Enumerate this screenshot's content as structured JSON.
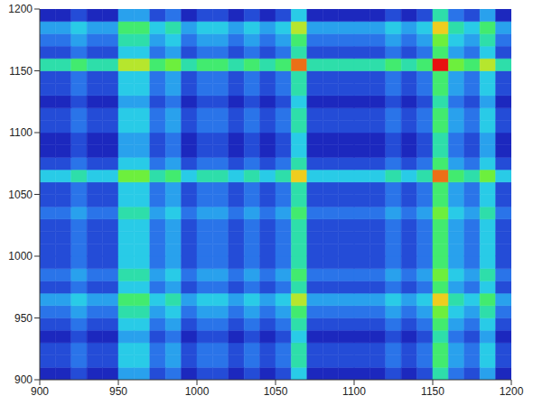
{
  "chart_data": {
    "type": "heatmap",
    "xlim": [
      900,
      1200
    ],
    "ylim": [
      900,
      1200
    ],
    "xticks": [
      900,
      950,
      1000,
      1050,
      1100,
      1150,
      1200
    ],
    "yticks": [
      900,
      950,
      1000,
      1050,
      1100,
      1150,
      1200
    ],
    "xbins": [
      900,
      910,
      920,
      930,
      940,
      950,
      960,
      970,
      980,
      990,
      1000,
      1010,
      1020,
      1030,
      1040,
      1050,
      1060,
      1070,
      1080,
      1090,
      1100,
      1110,
      1120,
      1130,
      1140,
      1150,
      1160,
      1170,
      1180,
      1190,
      1200
    ],
    "ybins": [
      900,
      910,
      920,
      930,
      940,
      950,
      960,
      970,
      980,
      990,
      1000,
      1010,
      1020,
      1030,
      1040,
      1050,
      1060,
      1070,
      1080,
      1090,
      1100,
      1110,
      1120,
      1130,
      1140,
      1150,
      1160,
      1170,
      1180,
      1190,
      1200
    ],
    "cells": [
      [
        1,
        1,
        2,
        1,
        1,
        4,
        4,
        2,
        3,
        1,
        2,
        2,
        1,
        2,
        1,
        2,
        5,
        1,
        1,
        1,
        1,
        1,
        2,
        1,
        2,
        6,
        3,
        2,
        4,
        1
      ],
      [
        2,
        2,
        3,
        2,
        2,
        5,
        5,
        3,
        4,
        2,
        3,
        3,
        2,
        3,
        2,
        3,
        6,
        2,
        2,
        2,
        2,
        2,
        3,
        2,
        3,
        7,
        4,
        3,
        5,
        2
      ],
      [
        2,
        2,
        3,
        2,
        2,
        5,
        5,
        3,
        4,
        2,
        3,
        3,
        2,
        3,
        2,
        3,
        6,
        2,
        2,
        2,
        2,
        2,
        3,
        2,
        3,
        7,
        4,
        3,
        5,
        2
      ],
      [
        1,
        1,
        2,
        1,
        1,
        4,
        4,
        2,
        3,
        1,
        2,
        2,
        1,
        2,
        1,
        2,
        5,
        1,
        1,
        1,
        1,
        1,
        2,
        1,
        2,
        6,
        3,
        2,
        4,
        1
      ],
      [
        2,
        2,
        3,
        2,
        2,
        5,
        5,
        3,
        4,
        2,
        3,
        3,
        2,
        3,
        2,
        3,
        6,
        2,
        2,
        2,
        2,
        2,
        3,
        2,
        3,
        7,
        4,
        3,
        5,
        2
      ],
      [
        3,
        3,
        4,
        3,
        3,
        6,
        6,
        4,
        5,
        3,
        4,
        4,
        3,
        4,
        3,
        4,
        7,
        3,
        3,
        3,
        3,
        3,
        4,
        3,
        4,
        8,
        5,
        4,
        6,
        3
      ],
      [
        4,
        4,
        5,
        4,
        4,
        7,
        7,
        5,
        6,
        4,
        5,
        5,
        4,
        5,
        4,
        5,
        9,
        4,
        4,
        4,
        4,
        4,
        5,
        4,
        5,
        10,
        6,
        5,
        7,
        4
      ],
      [
        2,
        2,
        3,
        2,
        2,
        5,
        5,
        3,
        4,
        2,
        3,
        3,
        2,
        3,
        2,
        3,
        6,
        2,
        2,
        2,
        2,
        2,
        3,
        2,
        3,
        7,
        4,
        3,
        5,
        2
      ],
      [
        3,
        3,
        4,
        3,
        3,
        6,
        6,
        4,
        5,
        3,
        4,
        4,
        3,
        4,
        3,
        4,
        7,
        3,
        3,
        3,
        3,
        3,
        4,
        3,
        4,
        8,
        5,
        4,
        6,
        3
      ],
      [
        2,
        2,
        3,
        2,
        2,
        5,
        5,
        3,
        4,
        2,
        3,
        3,
        2,
        3,
        2,
        3,
        6,
        2,
        2,
        2,
        2,
        2,
        3,
        2,
        3,
        7,
        4,
        3,
        5,
        2
      ],
      [
        2,
        2,
        3,
        2,
        2,
        5,
        5,
        3,
        4,
        2,
        3,
        3,
        2,
        3,
        2,
        3,
        6,
        2,
        2,
        2,
        2,
        2,
        3,
        2,
        3,
        7,
        4,
        3,
        5,
        2
      ],
      [
        2,
        2,
        3,
        2,
        2,
        5,
        5,
        3,
        4,
        2,
        3,
        3,
        2,
        3,
        2,
        3,
        6,
        2,
        2,
        2,
        2,
        2,
        3,
        2,
        3,
        7,
        4,
        3,
        5,
        2
      ],
      [
        2,
        2,
        3,
        2,
        2,
        5,
        5,
        3,
        4,
        2,
        3,
        3,
        2,
        3,
        2,
        3,
        6,
        2,
        2,
        2,
        2,
        2,
        3,
        2,
        3,
        7,
        4,
        3,
        5,
        2
      ],
      [
        3,
        3,
        4,
        3,
        3,
        6,
        6,
        4,
        5,
        3,
        4,
        4,
        3,
        4,
        3,
        4,
        7,
        3,
        3,
        3,
        3,
        3,
        4,
        3,
        4,
        8,
        5,
        4,
        6,
        3
      ],
      [
        2,
        2,
        3,
        2,
        2,
        5,
        5,
        3,
        4,
        2,
        3,
        3,
        2,
        3,
        2,
        3,
        6,
        2,
        2,
        2,
        2,
        2,
        3,
        2,
        3,
        7,
        4,
        3,
        5,
        2
      ],
      [
        2,
        2,
        3,
        2,
        2,
        5,
        5,
        3,
        4,
        2,
        3,
        3,
        2,
        3,
        2,
        3,
        6,
        2,
        2,
        2,
        2,
        2,
        3,
        2,
        3,
        7,
        4,
        3,
        5,
        2
      ],
      [
        5,
        5,
        6,
        5,
        5,
        8,
        8,
        6,
        7,
        5,
        6,
        6,
        5,
        6,
        5,
        6,
        10,
        5,
        5,
        5,
        5,
        5,
        6,
        5,
        6,
        11,
        7,
        6,
        8,
        5
      ],
      [
        2,
        2,
        3,
        2,
        2,
        5,
        5,
        3,
        4,
        2,
        3,
        3,
        2,
        3,
        2,
        3,
        6,
        2,
        2,
        2,
        2,
        2,
        3,
        2,
        3,
        7,
        4,
        3,
        5,
        2
      ],
      [
        1,
        1,
        2,
        1,
        1,
        4,
        4,
        2,
        3,
        1,
        2,
        2,
        1,
        2,
        1,
        2,
        5,
        1,
        1,
        1,
        1,
        1,
        2,
        1,
        2,
        6,
        3,
        2,
        4,
        1
      ],
      [
        1,
        1,
        2,
        1,
        1,
        4,
        4,
        2,
        3,
        1,
        2,
        2,
        1,
        2,
        1,
        2,
        5,
        1,
        1,
        1,
        1,
        1,
        2,
        1,
        2,
        6,
        3,
        2,
        4,
        1
      ],
      [
        2,
        2,
        3,
        2,
        2,
        5,
        5,
        3,
        4,
        2,
        3,
        3,
        2,
        3,
        2,
        3,
        6,
        2,
        2,
        2,
        2,
        2,
        3,
        2,
        3,
        7,
        4,
        3,
        5,
        2
      ],
      [
        2,
        2,
        3,
        2,
        2,
        5,
        5,
        3,
        4,
        2,
        3,
        3,
        2,
        3,
        2,
        3,
        6,
        2,
        2,
        2,
        2,
        2,
        3,
        2,
        3,
        7,
        4,
        3,
        5,
        2
      ],
      [
        1,
        1,
        2,
        1,
        1,
        4,
        4,
        2,
        3,
        1,
        2,
        2,
        1,
        2,
        1,
        2,
        5,
        1,
        1,
        1,
        1,
        1,
        2,
        1,
        2,
        6,
        3,
        2,
        4,
        1
      ],
      [
        2,
        2,
        3,
        2,
        2,
        5,
        5,
        3,
        4,
        2,
        3,
        3,
        2,
        3,
        2,
        3,
        6,
        2,
        2,
        2,
        2,
        2,
        3,
        2,
        3,
        7,
        4,
        3,
        5,
        2
      ],
      [
        2,
        2,
        3,
        2,
        2,
        5,
        5,
        3,
        4,
        2,
        3,
        3,
        2,
        3,
        2,
        3,
        6,
        2,
        2,
        2,
        2,
        2,
        3,
        2,
        3,
        7,
        4,
        3,
        5,
        2
      ],
      [
        6,
        6,
        7,
        6,
        6,
        9,
        9,
        7,
        8,
        6,
        7,
        7,
        6,
        7,
        6,
        7,
        11,
        6,
        6,
        6,
        6,
        6,
        7,
        6,
        7,
        12,
        8,
        7,
        9,
        6
      ],
      [
        2,
        2,
        3,
        2,
        2,
        5,
        5,
        3,
        4,
        2,
        3,
        3,
        2,
        3,
        2,
        3,
        6,
        2,
        2,
        2,
        2,
        2,
        3,
        2,
        3,
        7,
        4,
        3,
        5,
        2
      ],
      [
        3,
        3,
        4,
        3,
        3,
        6,
        6,
        4,
        5,
        3,
        4,
        4,
        3,
        4,
        3,
        4,
        7,
        3,
        3,
        3,
        3,
        3,
        4,
        3,
        4,
        8,
        5,
        4,
        6,
        3
      ],
      [
        4,
        4,
        5,
        4,
        4,
        7,
        7,
        5,
        6,
        4,
        5,
        5,
        4,
        5,
        4,
        5,
        9,
        4,
        4,
        4,
        4,
        4,
        5,
        4,
        5,
        10,
        6,
        5,
        7,
        4
      ],
      [
        1,
        1,
        2,
        1,
        1,
        4,
        4,
        2,
        3,
        1,
        2,
        2,
        1,
        2,
        1,
        2,
        5,
        1,
        1,
        1,
        1,
        1,
        2,
        1,
        2,
        6,
        3,
        2,
        4,
        1
      ]
    ]
  }
}
